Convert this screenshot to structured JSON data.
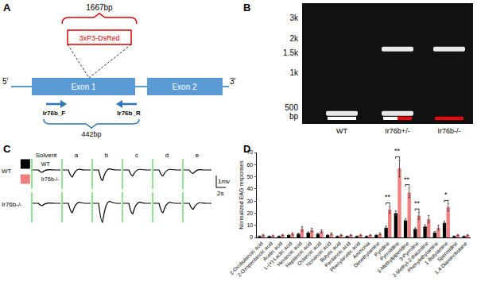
{
  "panel_a": {
    "label": "A",
    "insert_length": "1667bp",
    "insert": "3xP3-DsRed",
    "end5": "5′",
    "end3": "3′",
    "exons": [
      "Exon 1",
      "Exon 2"
    ],
    "primers": [
      "Ir76b_F",
      "Ir76b_R"
    ],
    "amplicon": "442bp"
  },
  "panel_b": {
    "label": "B",
    "ladder": [
      {
        "value": 3000,
        "label": "3k"
      },
      {
        "value": 2000,
        "label": "2k"
      },
      {
        "value": 1500,
        "label": "1.5k"
      },
      {
        "value": 1000,
        "label": "1k"
      },
      {
        "value": 500,
        "label": "500"
      }
    ],
    "ladder_unit": "bp",
    "lanes": [
      {
        "name": "WT",
        "bands": [
          442
        ],
        "colors": [
          "#ffffff"
        ]
      },
      {
        "name": "Ir76b+/-",
        "bands": [
          442,
          1600
        ],
        "colors": [
          "#ffffff",
          "#ff0000"
        ]
      },
      {
        "name": "Ir76b-/-",
        "bands": [
          1600
        ],
        "colors": [
          "#ff0000"
        ]
      }
    ]
  },
  "panel_c": {
    "label": "C",
    "stimuli": [
      "Solvent",
      "a",
      "b",
      "c",
      "d",
      "e"
    ],
    "rows": [
      {
        "name": "WT",
        "amplitudes": [
          0.2,
          0.6,
          0.9,
          0.5,
          0.5,
          0.3
        ]
      },
      {
        "name": "Ir76b-/-",
        "amplitudes": [
          0.2,
          0.8,
          1.6,
          0.9,
          0.8,
          0.5
        ]
      }
    ],
    "voltage_bar": {
      "value": 1,
      "label": "1mv"
    },
    "time_bar": {
      "value": 2,
      "label": "2s"
    }
  },
  "panel_d": {
    "label": "D"
  },
  "chart_data": {
    "type": "bar",
    "y_label": "Normalized EAG responses",
    "categories": [
      "2-Oxobutanoic acid",
      "2-Oxopentanoic acid",
      "Acetic acid",
      "L-(+)-Lactic acid",
      "Hexanoic acid",
      "Heptanoic acid",
      "Octanoic acid",
      "Nonanoic acid",
      "Butyric acid",
      "Pentanoic acid",
      "Phenylacetic acid",
      "Ammonia",
      "Dimethylamine",
      "Pyridine",
      "Pyrrolidine",
      "3-Methylpiperidine",
      "3-Pyrroline",
      "2-Methyl-2-thiazoline",
      "Phenylethylamine",
      "1-Butylamine",
      "Spermidine",
      "1,4-Diaminobutane"
    ],
    "series": [
      {
        "name": "WT",
        "color": "#000000",
        "values": [
          1,
          1,
          1,
          2,
          3,
          4,
          3,
          2,
          1,
          1,
          1,
          1,
          2,
          8,
          20,
          14,
          7,
          9,
          4,
          12,
          1,
          1
        ],
        "error": [
          0.3,
          0.3,
          0.3,
          0.4,
          0.5,
          0.6,
          0.5,
          0.4,
          0.3,
          0.3,
          0.3,
          0.3,
          0.4,
          1.5,
          2,
          1.5,
          1,
          1.5,
          0.8,
          1.5,
          0.3,
          0.3
        ]
      },
      {
        "name": "Ir76b-/-",
        "color": "#f08080",
        "values": [
          2,
          1.5,
          2,
          3,
          7,
          6,
          5,
          3,
          2,
          2,
          2,
          2,
          3,
          23,
          57,
          37,
          18,
          15,
          8,
          25,
          2,
          2
        ],
        "error": [
          0.5,
          0.4,
          0.5,
          0.8,
          2,
          1.5,
          1.2,
          0.8,
          0.5,
          0.5,
          0.5,
          0.5,
          0.8,
          3,
          7,
          4,
          3,
          3,
          2,
          3,
          0.5,
          0.5
        ]
      }
    ],
    "ylim": [
      0,
      70
    ],
    "yticks": [
      0,
      10,
      20,
      30,
      40,
      50,
      60,
      70
    ],
    "grid": false,
    "legend": "upper left",
    "significance": [
      {
        "category": "Pyridine",
        "label": "**"
      },
      {
        "category": "Pyrrolidine",
        "label": "**"
      },
      {
        "category": "3-Methylpiperidine",
        "label": "**"
      },
      {
        "category": "3-Pyrroline",
        "label": "**"
      },
      {
        "category": "1-Butylamine",
        "label": "*"
      }
    ]
  }
}
